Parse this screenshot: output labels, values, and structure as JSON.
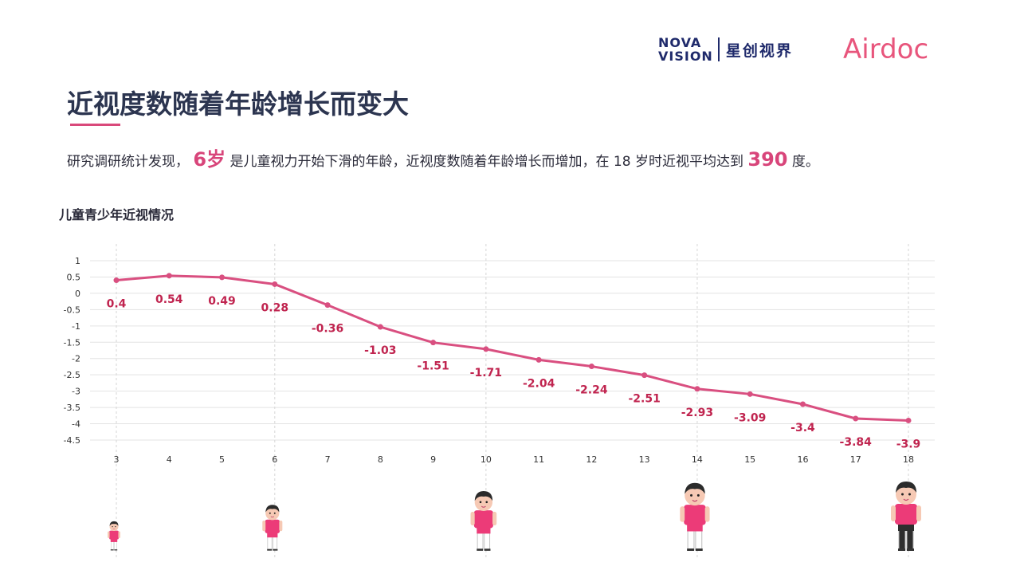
{
  "logos": {
    "nova_line1": "NOVA",
    "nova_line2": "VISION",
    "nova_cn": "星创视界",
    "airdoc": "Airdoc"
  },
  "title": "近视度数随着年龄增长而变大",
  "summary": {
    "part1": "研究调研统计发现，",
    "age": "6岁",
    "part2": "是儿童视力开始下滑的年龄，近视度数随着年龄增长而增加，在 18 岁时近视平均达到",
    "value": "390",
    "part3": "度。"
  },
  "chart_title": "儿童青少年近视情况",
  "colors": {
    "line": "#d94f80",
    "label": "#c0244f",
    "accent": "#d8457a",
    "navy": "#1f2a6b"
  },
  "chart_data": {
    "type": "line",
    "categories": [
      "3",
      "4",
      "5",
      "6",
      "7",
      "8",
      "9",
      "10",
      "11",
      "12",
      "13",
      "14",
      "15",
      "16",
      "17",
      "18"
    ],
    "series": [
      {
        "values": [
          0.4,
          0.54,
          0.49,
          0.28,
          -0.36,
          -1.03,
          -1.51,
          -1.71,
          -2.04,
          -2.24,
          -2.51,
          -2.93,
          -3.09,
          -3.4,
          -3.84,
          -3.9
        ]
      }
    ],
    "y_ticks": [
      "1",
      "0.5",
      "0",
      "-0.5",
      "-1",
      "-1.5",
      "-2",
      "-2.5",
      "-3",
      "-3.5",
      "-4",
      "-4.5"
    ],
    "ylim": [
      -4.5,
      1
    ],
    "grid": true,
    "highlighted_ages": [
      "3",
      "6",
      "10",
      "14",
      "18"
    ]
  },
  "illustrations": [
    {
      "age": "3",
      "icon": "child-figure-icon"
    },
    {
      "age": "6",
      "icon": "child-figure-icon"
    },
    {
      "age": "10",
      "icon": "child-figure-icon"
    },
    {
      "age": "14",
      "icon": "teen-figure-icon"
    },
    {
      "age": "18",
      "icon": "teen-figure-icon"
    }
  ]
}
